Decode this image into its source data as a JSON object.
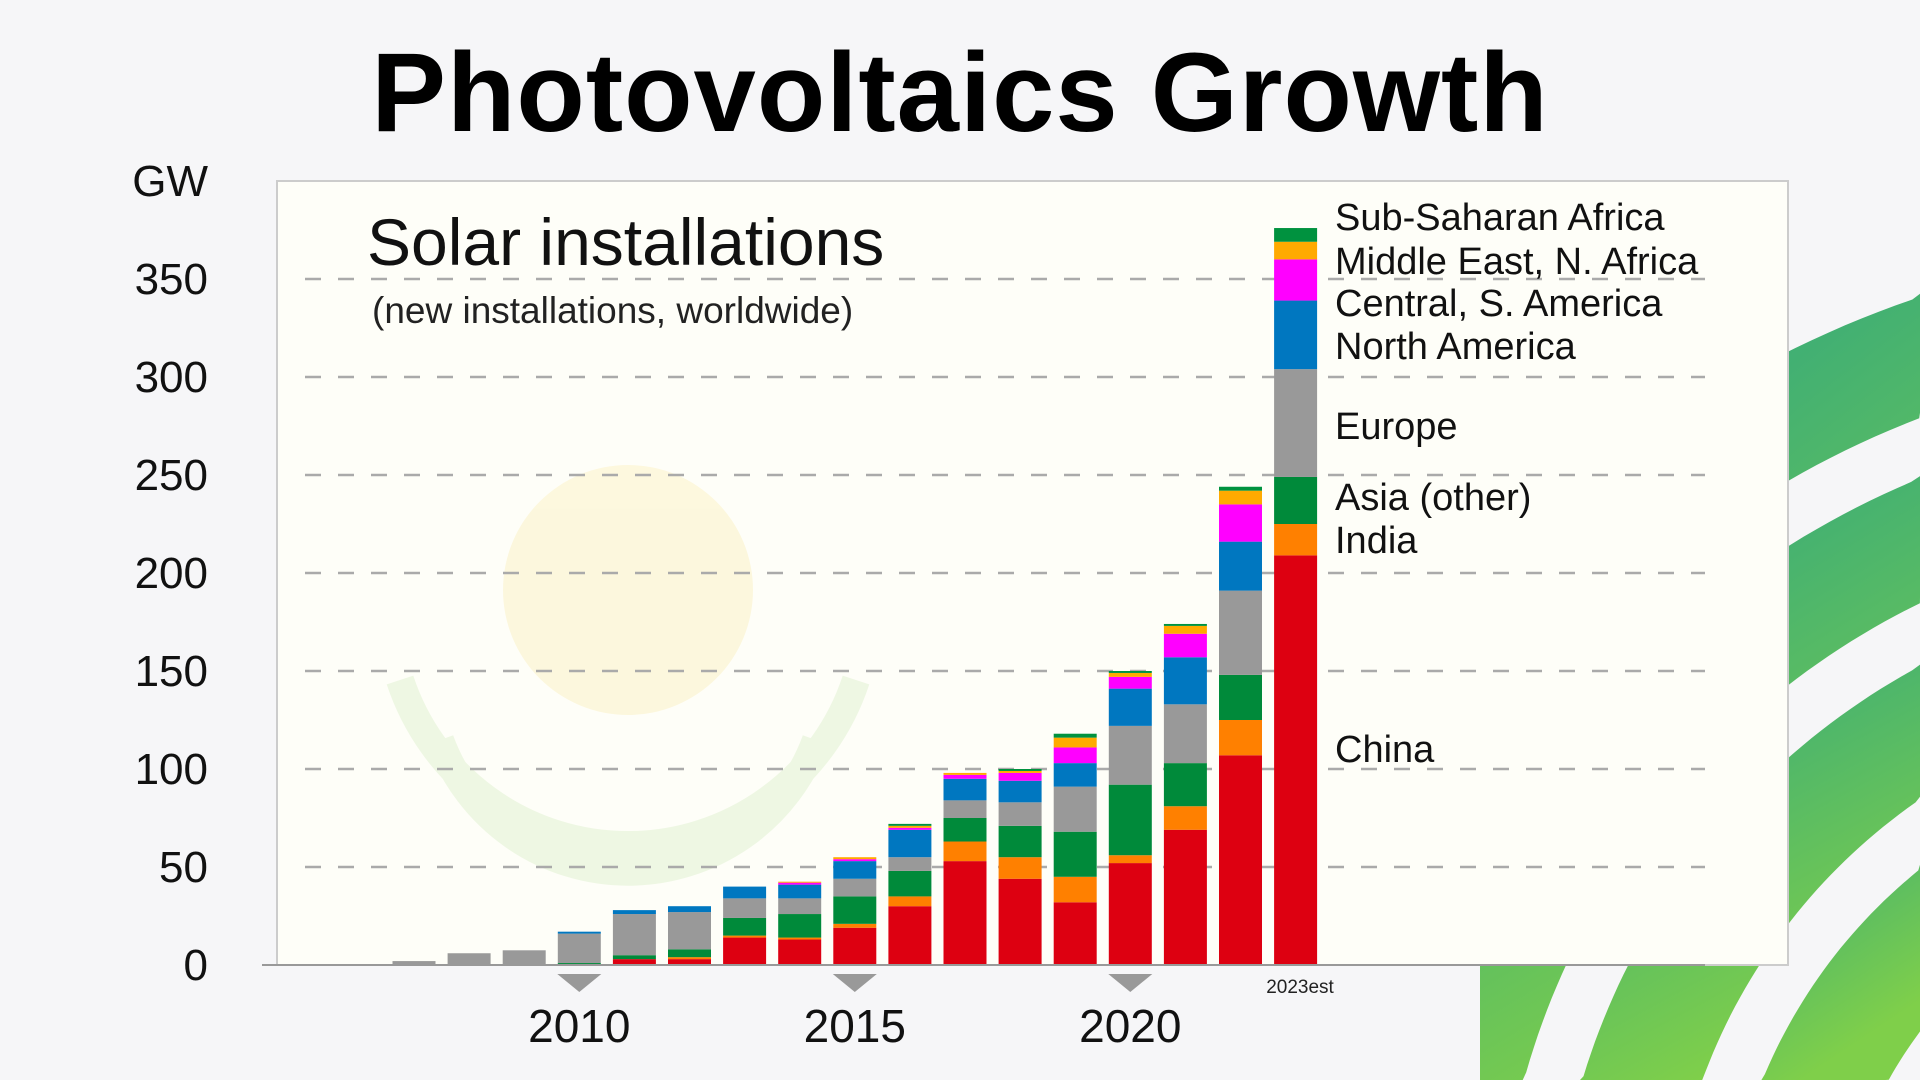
{
  "page": {
    "title": "Photovoltaics Growth"
  },
  "colors": {
    "China": "#dd0011",
    "India": "#ff8000",
    "Asia (other)": "#008a3a",
    "Europe": "#999999",
    "North America": "#0077c0",
    "Central, S. America": "#ff00ff",
    "Middle East, N. Africa": "#ffaa00",
    "Sub-Saharan Africa": "#00923f",
    "background": "#f6f6f8",
    "plot_background": "#fefef8",
    "decor_gradient": [
      "#1f9e8a",
      "#7fcf4a"
    ]
  },
  "chart_data": {
    "type": "bar",
    "stacked": true,
    "title": "Solar installations",
    "subtitle": "(new installations, worldwide)",
    "ylabel": "GW",
    "ylim": [
      0,
      400
    ],
    "yticks": [
      0,
      50,
      100,
      150,
      200,
      250,
      300,
      350
    ],
    "xtick_labels": [
      "2010",
      "2015",
      "2020"
    ],
    "last_bar_label": "2023est",
    "grid": "horizontal dashed",
    "legend": "right, labels beside last bar",
    "categories": [
      2007,
      2008,
      2009,
      2010,
      2011,
      2012,
      2013,
      2014,
      2015,
      2016,
      2017,
      2018,
      2019,
      2020,
      2021,
      2022,
      2023
    ],
    "series": [
      {
        "name": "China",
        "values": [
          0,
          0,
          0,
          0,
          3,
          3,
          14,
          13,
          19,
          30,
          53,
          44,
          32,
          52,
          69,
          107,
          209
        ]
      },
      {
        "name": "India",
        "values": [
          0,
          0,
          0,
          0,
          0,
          1,
          1,
          1,
          2,
          5,
          10,
          11,
          13,
          4,
          12,
          18,
          16
        ]
      },
      {
        "name": "Asia (other)",
        "values": [
          0,
          0.5,
          0.5,
          1,
          2,
          4,
          9,
          12,
          14,
          13,
          12,
          16,
          23,
          36,
          22,
          23,
          24
        ]
      },
      {
        "name": "Europe",
        "values": [
          2,
          5.5,
          7,
          15,
          21,
          19,
          10,
          8,
          9,
          7,
          9,
          12,
          23,
          30,
          30,
          43,
          55
        ]
      },
      {
        "name": "North America",
        "values": [
          0,
          0,
          0,
          1,
          2,
          3,
          6,
          7,
          9,
          14,
          11,
          11,
          12,
          19,
          24,
          25,
          35
        ]
      },
      {
        "name": "Central, S. America",
        "values": [
          0,
          0,
          0,
          0,
          0,
          0,
          0,
          1,
          1,
          1,
          2,
          4,
          8,
          6,
          12,
          19,
          21
        ]
      },
      {
        "name": "Middle East, N. Africa",
        "values": [
          0,
          0,
          0,
          0,
          0,
          0,
          0,
          0.5,
          1,
          1,
          1,
          1,
          5,
          2,
          4,
          7,
          9
        ]
      },
      {
        "name": "Sub-Saharan Africa",
        "values": [
          0,
          0,
          0,
          0,
          0,
          0,
          0,
          0,
          0,
          1,
          0,
          1,
          2,
          1,
          1,
          2,
          7
        ]
      }
    ]
  }
}
